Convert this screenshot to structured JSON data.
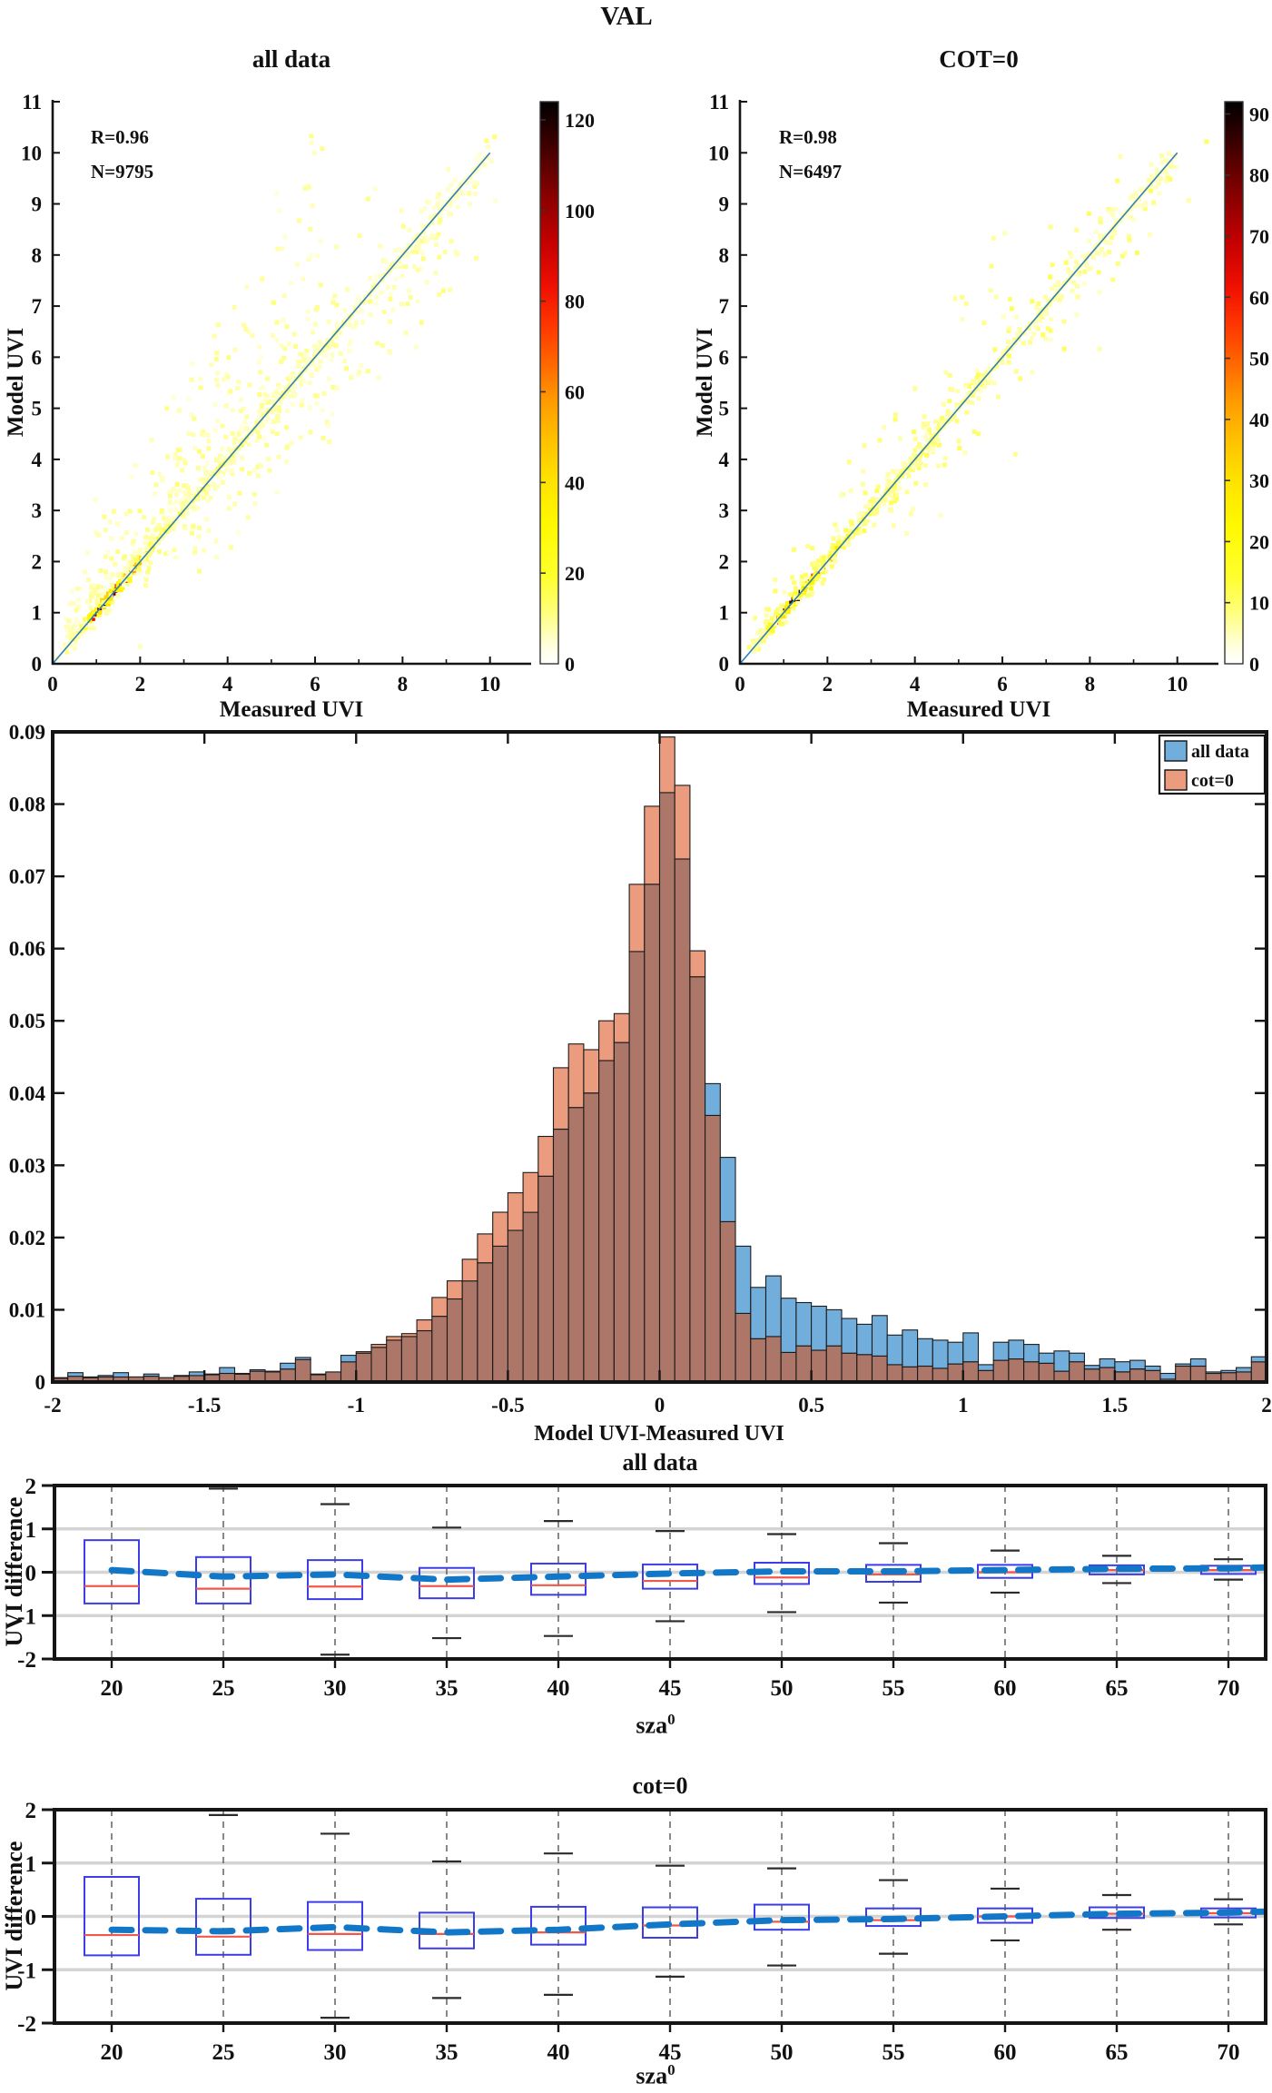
{
  "figure": {
    "title": "VAL"
  },
  "colors": {
    "hist_blue": "#72AEDC",
    "hist_orange": "#EC9C7E",
    "hist_overlap": "#AC7668",
    "bar_edge": "#1b1b1b",
    "box_edge": "#3D3DE8",
    "median": "#F2574B",
    "whisker": "#2b2b2b",
    "mean_line": "#1377C8",
    "grid": "#d4d4d4",
    "grid_dashed": "#555555",
    "identity_line": "#2E7EBE",
    "spine": "#151515"
  },
  "heat_colormap": [
    [
      0.0,
      "#ffffff"
    ],
    [
      0.03,
      "#ffffe0"
    ],
    [
      0.06,
      "#ffffb0"
    ],
    [
      0.1,
      "#ffff70"
    ],
    [
      0.16,
      "#ffff2a"
    ],
    [
      0.25,
      "#fff800"
    ],
    [
      0.33,
      "#ffe100"
    ],
    [
      0.4,
      "#ffc000"
    ],
    [
      0.47,
      "#ff9900"
    ],
    [
      0.53,
      "#ff6a00"
    ],
    [
      0.6,
      "#ff3800"
    ],
    [
      0.67,
      "#f01000"
    ],
    [
      0.75,
      "#c40000"
    ],
    [
      0.83,
      "#8a0000"
    ],
    [
      0.9,
      "#520000"
    ],
    [
      0.96,
      "#1f0000"
    ],
    [
      1.0,
      "#000000"
    ]
  ],
  "chart_data": [
    {
      "type": "scatter",
      "subtype": "density-heatmap",
      "title": "all data",
      "annotations": [
        "R=0.96",
        "N=9795"
      ],
      "xlabel": "Measured UVI",
      "ylabel": "Model UVI",
      "xlim": [
        0,
        10.94
      ],
      "ylim": [
        0,
        11
      ],
      "xticks": [
        0,
        2,
        4,
        6,
        8,
        10
      ],
      "xticks_minor": [
        1,
        3,
        5,
        7,
        9
      ],
      "yticks": [
        0,
        1,
        2,
        3,
        4,
        5,
        6,
        7,
        8,
        9,
        10,
        11
      ],
      "identity_line": true,
      "colorbar": {
        "max": 124,
        "ticks": [
          0,
          20,
          40,
          60,
          80,
          100,
          120
        ]
      },
      "density_profile": [
        [
          0.45,
          12
        ],
        [
          0.6,
          24
        ],
        [
          0.75,
          48
        ],
        [
          0.9,
          80
        ],
        [
          1.0,
          108
        ],
        [
          1.35,
          124
        ],
        [
          1.55,
          90
        ],
        [
          1.75,
          62
        ],
        [
          2.05,
          42
        ],
        [
          2.45,
          26
        ],
        [
          3.2,
          16
        ],
        [
          5,
          11
        ],
        [
          8,
          8
        ],
        [
          11,
          6
        ]
      ],
      "seed": 101,
      "spread": 1.0
    },
    {
      "type": "scatter",
      "subtype": "density-heatmap",
      "title": "COT=0",
      "annotations": [
        "R=0.98",
        "N=6497"
      ],
      "xlabel": "Measured UVI",
      "ylabel": "Model UVI",
      "xlim": [
        0,
        10.94
      ],
      "ylim": [
        0,
        11
      ],
      "xticks": [
        0,
        2,
        4,
        6,
        8,
        10
      ],
      "xticks_minor": [
        1,
        3,
        5,
        7,
        9
      ],
      "yticks": [
        0,
        1,
        2,
        3,
        4,
        5,
        6,
        7,
        8,
        9,
        10,
        11
      ],
      "identity_line": true,
      "colorbar": {
        "max": 92,
        "ticks": [
          0,
          10,
          20,
          30,
          40,
          50,
          60,
          70,
          80,
          90
        ]
      },
      "density_profile": [
        [
          0.45,
          10
        ],
        [
          0.6,
          20
        ],
        [
          0.75,
          40
        ],
        [
          0.9,
          66
        ],
        [
          1.0,
          86
        ],
        [
          1.35,
          92
        ],
        [
          1.55,
          70
        ],
        [
          1.75,
          50
        ],
        [
          2.05,
          34
        ],
        [
          2.45,
          20
        ],
        [
          3.2,
          12
        ],
        [
          5,
          8
        ],
        [
          8,
          6
        ],
        [
          11,
          5
        ]
      ],
      "seed": 202,
      "spread": 0.55
    },
    {
      "type": "bar",
      "subtype": "overlapping-histogram",
      "xlabel": "Model UVI-Measured UVI",
      "bin_start": -2,
      "bin_width": 0.05,
      "xlim": [
        -2,
        2
      ],
      "ylim": [
        0,
        0.09
      ],
      "xticks": [
        -2,
        -1.5,
        -1,
        -0.5,
        0,
        0.5,
        1,
        1.5,
        2
      ],
      "yticks": [
        0,
        0.01,
        0.02,
        0.03,
        0.04,
        0.05,
        0.06,
        0.07,
        0.08,
        0.09
      ],
      "legend_position": "top-right",
      "series": [
        {
          "name": "all data",
          "values": [
            0.0006,
            0.0013,
            0.0007,
            0.0009,
            0.0013,
            0.0007,
            0.0011,
            0.0006,
            0.0009,
            0.0014,
            0.0011,
            0.002,
            0.0012,
            0.0017,
            0.0015,
            0.0026,
            0.0034,
            0.0011,
            0.0014,
            0.0037,
            0.004,
            0.0048,
            0.0058,
            0.0063,
            0.0071,
            0.0091,
            0.0115,
            0.014,
            0.0165,
            0.0188,
            0.021,
            0.0235,
            0.0285,
            0.035,
            0.038,
            0.04,
            0.0445,
            0.047,
            0.0596,
            0.0689,
            0.0816,
            0.0724,
            0.0561,
            0.0413,
            0.0311,
            0.0188,
            0.0131,
            0.0147,
            0.0116,
            0.011,
            0.0105,
            0.01,
            0.0088,
            0.008,
            0.0092,
            0.0065,
            0.0072,
            0.006,
            0.0058,
            0.0055,
            0.0068,
            0.0024,
            0.0055,
            0.0058,
            0.0052,
            0.004,
            0.0043,
            0.004,
            0.0023,
            0.0032,
            0.0028,
            0.003,
            0.0022,
            0.0012,
            0.0025,
            0.0032,
            0.0014,
            0.0016,
            0.002,
            0.0035
          ]
        },
        {
          "name": "cot=0",
          "values": [
            0.0005,
            0.0008,
            0.0006,
            0.0007,
            0.0007,
            0.0007,
            0.0008,
            0.0006,
            0.0008,
            0.0009,
            0.001,
            0.0012,
            0.0011,
            0.0015,
            0.0014,
            0.0018,
            0.0031,
            0.001,
            0.0014,
            0.0028,
            0.0042,
            0.0052,
            0.0063,
            0.0067,
            0.0086,
            0.0117,
            0.014,
            0.017,
            0.0205,
            0.0235,
            0.0262,
            0.029,
            0.034,
            0.0435,
            0.0468,
            0.046,
            0.05,
            0.051,
            0.0689,
            0.0797,
            0.0893,
            0.0826,
            0.0597,
            0.0369,
            0.0222,
            0.0095,
            0.006,
            0.0063,
            0.0041,
            0.005,
            0.0044,
            0.005,
            0.004,
            0.0038,
            0.0036,
            0.0024,
            0.0021,
            0.0022,
            0.0019,
            0.0025,
            0.0028,
            0.0016,
            0.003,
            0.0032,
            0.0028,
            0.0026,
            0.0015,
            0.0028,
            0.0018,
            0.002,
            0.0014,
            0.0018,
            0.0016,
            0.0004,
            0.0022,
            0.0022,
            0.0012,
            0.0013,
            0.0014,
            0.0028
          ]
        }
      ]
    },
    {
      "type": "box",
      "title": "all data",
      "xlabel": "sza",
      "xlabel_sup": "0",
      "ylabel": "UVI difference",
      "ylim": [
        -2,
        2
      ],
      "yticks": [
        2,
        1,
        0,
        -1,
        -2
      ],
      "grid_y": [
        1,
        0,
        -1
      ],
      "categories": [
        20,
        25,
        30,
        35,
        40,
        45,
        50,
        55,
        60,
        65,
        70
      ],
      "q1": [
        -0.72,
        -0.72,
        -0.62,
        -0.6,
        -0.52,
        -0.38,
        -0.27,
        -0.22,
        -0.13,
        -0.05,
        -0.04
      ],
      "median": [
        -0.32,
        -0.38,
        -0.33,
        -0.32,
        -0.3,
        -0.2,
        -0.12,
        -0.05,
        0.0,
        0.05,
        0.05
      ],
      "q3": [
        0.74,
        0.35,
        0.28,
        0.1,
        0.2,
        0.18,
        0.22,
        0.17,
        0.17,
        0.16,
        0.15
      ],
      "whisker_low": [
        -2.3,
        -2.3,
        -1.9,
        -1.52,
        -1.47,
        -1.13,
        -0.92,
        -0.7,
        -0.47,
        -0.25,
        -0.17
      ],
      "whisker_high": [
        2.3,
        1.93,
        1.57,
        1.03,
        1.18,
        0.95,
        0.88,
        0.67,
        0.5,
        0.38,
        0.3
      ],
      "clip_low": [
        true,
        true,
        false,
        false,
        false,
        false,
        false,
        false,
        false,
        false,
        false
      ],
      "clip_high": [
        true,
        false,
        false,
        false,
        false,
        false,
        false,
        false,
        false,
        false,
        false
      ],
      "mean_line": [
        0.05,
        -0.1,
        -0.05,
        -0.17,
        -0.1,
        -0.03,
        0.02,
        0.02,
        0.05,
        0.08,
        0.09
      ]
    },
    {
      "type": "box",
      "title": "cot=0",
      "xlabel": "sza",
      "xlabel_sup": "0",
      "ylabel": "UVI difference",
      "ylim": [
        -2,
        2
      ],
      "yticks": [
        2,
        1,
        0,
        -1,
        -2
      ],
      "grid_y": [
        1,
        0,
        -1
      ],
      "categories": [
        20,
        25,
        30,
        35,
        40,
        45,
        50,
        55,
        60,
        65,
        70
      ],
      "q1": [
        -0.73,
        -0.72,
        -0.63,
        -0.6,
        -0.53,
        -0.4,
        -0.25,
        -0.18,
        -0.12,
        -0.03,
        -0.02
      ],
      "median": [
        -0.35,
        -0.38,
        -0.33,
        -0.33,
        -0.3,
        -0.17,
        -0.1,
        -0.07,
        0.0,
        0.05,
        0.06
      ],
      "q3": [
        0.74,
        0.33,
        0.27,
        0.07,
        0.18,
        0.17,
        0.22,
        0.15,
        0.15,
        0.17,
        0.15
      ],
      "whisker_low": [
        -2.3,
        -2.3,
        -1.9,
        -1.53,
        -1.47,
        -1.13,
        -0.92,
        -0.7,
        -0.45,
        -0.25,
        -0.15
      ],
      "whisker_high": [
        2.3,
        1.9,
        1.55,
        1.03,
        1.18,
        0.95,
        0.9,
        0.68,
        0.52,
        0.4,
        0.32
      ],
      "clip_low": [
        true,
        true,
        false,
        false,
        false,
        false,
        false,
        false,
        false,
        false,
        false
      ],
      "clip_high": [
        true,
        false,
        false,
        false,
        false,
        false,
        false,
        false,
        false,
        false,
        false
      ],
      "mean_line": [
        -0.25,
        -0.28,
        -0.2,
        -0.3,
        -0.25,
        -0.15,
        -0.07,
        -0.05,
        0.0,
        0.05,
        0.07
      ]
    }
  ]
}
